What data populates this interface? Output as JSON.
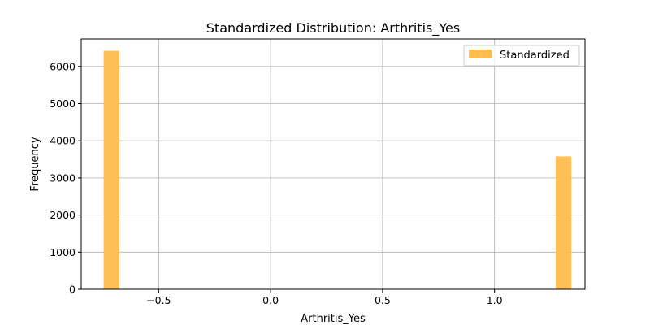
{
  "chart_data": {
    "type": "bar",
    "title": "Standardized Distribution: Arthritis_Yes",
    "xlabel": "Arthritis_Yes",
    "ylabel": "Frequency",
    "xlim": [
      -0.846,
      1.404
    ],
    "ylim": [
      0,
      6740
    ],
    "xticks": [
      -0.5,
      0.0,
      0.5,
      1.0
    ],
    "xtick_labels": [
      "−0.5",
      "0.0",
      "0.5",
      "1.0"
    ],
    "yticks": [
      0,
      1000,
      2000,
      3000,
      4000,
      5000,
      6000
    ],
    "ytick_labels": [
      "0",
      "1000",
      "2000",
      "3000",
      "4000",
      "5000",
      "6000"
    ],
    "grid": true,
    "legend_position": "top-right",
    "series": [
      {
        "name": "Standardized",
        "color": "#FFBE4E",
        "bins": [
          {
            "x0": -0.746,
            "x1": -0.676,
            "count": 6420
          },
          {
            "x0": 1.273,
            "x1": 1.343,
            "count": 3580
          }
        ]
      }
    ]
  }
}
